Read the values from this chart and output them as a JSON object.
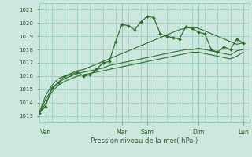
{
  "xlabel": "Pression niveau de la mer( hPa )",
  "bg_color": "#cce8de",
  "grid_color": "#99ccbb",
  "line_color": "#2d6e2d",
  "ylim": [
    1012.5,
    1021.5
  ],
  "yticks": [
    1013,
    1014,
    1015,
    1016,
    1017,
    1018,
    1019,
    1020,
    1021
  ],
  "xlim": [
    0,
    33
  ],
  "tick_labels": [
    "Ven",
    "Mar",
    "Sam",
    "Dim",
    "Lun"
  ],
  "tick_positions": [
    1,
    13,
    17,
    25,
    32
  ],
  "series1": [
    1013.2,
    1013.7,
    1015.1,
    1015.5,
    1016.0,
    1016.1,
    1016.3,
    1016.0,
    1016.1,
    1016.5,
    1017.0,
    1017.1,
    1018.6,
    1019.9,
    1019.8,
    1019.5,
    1020.1,
    1020.5,
    1020.4,
    1019.2,
    1019.0,
    1018.9,
    1018.8,
    1019.7,
    1019.6,
    1019.3,
    1019.2,
    1018.0,
    1017.8,
    1018.2,
    1018.0,
    1018.8,
    1018.5
  ],
  "series2": [
    1013.2,
    1014.5,
    1015.3,
    1015.8,
    1016.0,
    1016.2,
    1016.4,
    1016.5,
    1016.7,
    1016.9,
    1017.1,
    1017.3,
    1017.5,
    1017.7,
    1017.9,
    1018.1,
    1018.3,
    1018.5,
    1018.7,
    1018.9,
    1019.1,
    1019.3,
    1019.5,
    1019.6,
    1019.7,
    1019.6,
    1019.4,
    1019.2,
    1019.0,
    1018.8,
    1018.6,
    1018.4,
    1018.5
  ],
  "series3": [
    1013.2,
    1014.2,
    1015.0,
    1015.5,
    1015.8,
    1016.0,
    1016.2,
    1016.3,
    1016.4,
    1016.5,
    1016.6,
    1016.8,
    1016.9,
    1017.0,
    1017.1,
    1017.2,
    1017.3,
    1017.4,
    1017.5,
    1017.6,
    1017.7,
    1017.8,
    1017.9,
    1018.0,
    1018.0,
    1018.1,
    1018.0,
    1017.9,
    1017.8,
    1017.7,
    1017.6,
    1017.9,
    1018.0
  ],
  "series4": [
    1013.2,
    1013.9,
    1014.8,
    1015.3,
    1015.6,
    1015.8,
    1016.0,
    1016.1,
    1016.2,
    1016.3,
    1016.4,
    1016.5,
    1016.6,
    1016.7,
    1016.8,
    1016.9,
    1017.0,
    1017.1,
    1017.2,
    1017.3,
    1017.4,
    1017.5,
    1017.6,
    1017.7,
    1017.8,
    1017.8,
    1017.7,
    1017.6,
    1017.5,
    1017.4,
    1017.3,
    1017.5,
    1017.8
  ]
}
